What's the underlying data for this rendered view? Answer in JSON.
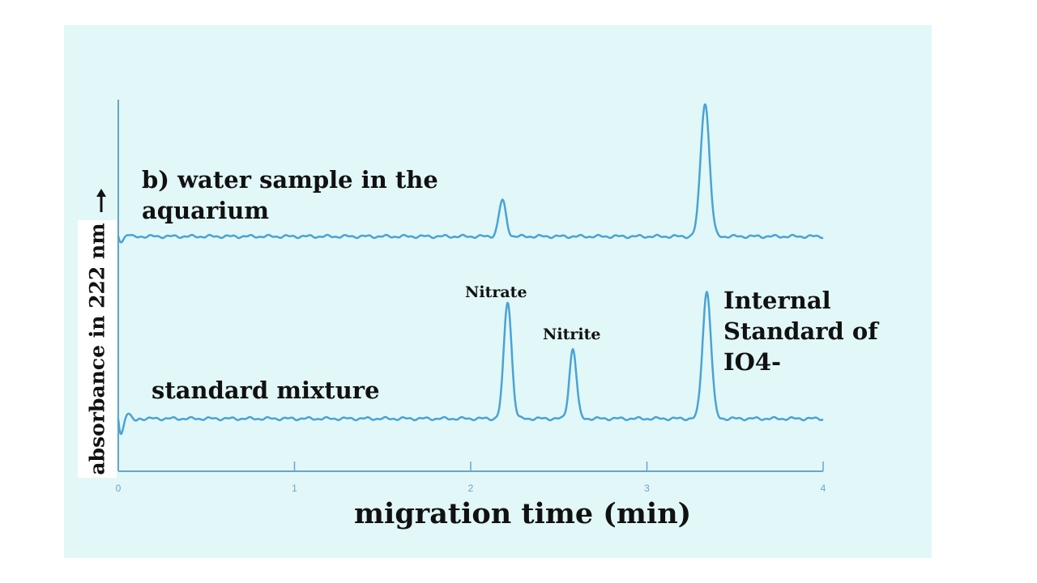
{
  "chart_data": {
    "type": "line",
    "title": "",
    "xlabel": "migration time (min)",
    "ylabel": "absorbance in 222 nm",
    "xlim": [
      0,
      4
    ],
    "x_ticks": [
      "0",
      "1",
      "2",
      "3",
      "4"
    ],
    "grid": false,
    "colors": {
      "trace": "#4aa3d4",
      "axis": "#6aa5c8",
      "panel": "#e2f7f8"
    },
    "series": [
      {
        "name": "b) water sample in the aquarium",
        "baseline_end": 4.0,
        "peaks": [
          {
            "x": 2.18,
            "height": 0.27,
            "width": 0.02
          },
          {
            "x": 3.33,
            "height": 1.0,
            "width": 0.025
          }
        ]
      },
      {
        "name": "standard mixture",
        "baseline_end": 4.0,
        "peaks": [
          {
            "x": 2.21,
            "height": 0.92,
            "width": 0.022,
            "label": "Nitrate"
          },
          {
            "x": 2.58,
            "height": 0.55,
            "width": 0.02,
            "label": "Nitrite"
          },
          {
            "x": 3.34,
            "height": 1.0,
            "width": 0.024,
            "label": "Internal Standard of IO4-"
          }
        ]
      }
    ],
    "annotations": {
      "trace_b": "b) water sample in the aquarium",
      "trace_a": "standard mixture",
      "nitrate": "Nitrate",
      "nitrite": "Nitrite",
      "internal_standard": "Internal Standard of IO4-"
    }
  }
}
